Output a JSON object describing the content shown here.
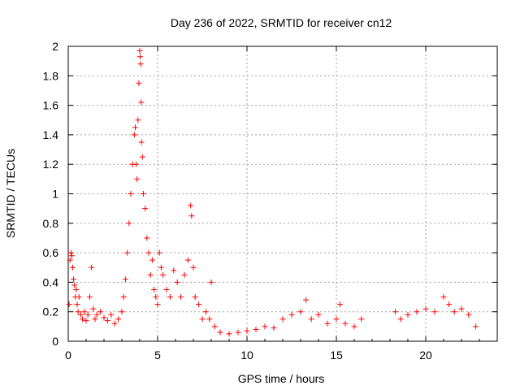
{
  "chart_data": {
    "type": "scatter",
    "title": "Day 236 of 2022, SRMTID for receiver cn12",
    "xlabel": "GPS time / hours",
    "ylabel": "SRMTID / TECUs",
    "xlim": [
      0,
      24
    ],
    "ylim": [
      0,
      2
    ],
    "x_ticks": [
      "0",
      "5",
      "10",
      "15",
      "20"
    ],
    "x_tick_values": [
      0,
      5,
      10,
      15,
      20
    ],
    "y_ticks": [
      "0",
      "0.2",
      "0.4",
      "0.6",
      "0.8",
      "1",
      "1.2",
      "1.4",
      "1.6",
      "1.8",
      "2"
    ],
    "y_tick_values": [
      0,
      0.2,
      0.4,
      0.6,
      0.8,
      1,
      1.2,
      1.4,
      1.6,
      1.8,
      2
    ],
    "grid": true,
    "marker": "+",
    "marker_color": "#ff0000",
    "series": [
      {
        "name": "SRMTID",
        "points": [
          [
            0.05,
            0.25
          ],
          [
            0.1,
            0.55
          ],
          [
            0.15,
            0.6
          ],
          [
            0.2,
            0.58
          ],
          [
            0.25,
            0.5
          ],
          [
            0.3,
            0.42
          ],
          [
            0.35,
            0.38
          ],
          [
            0.4,
            0.3
          ],
          [
            0.45,
            0.35
          ],
          [
            0.5,
            0.25
          ],
          [
            0.55,
            0.2
          ],
          [
            0.6,
            0.3
          ],
          [
            0.7,
            0.18
          ],
          [
            0.8,
            0.15
          ],
          [
            0.9,
            0.2
          ],
          [
            1.0,
            0.14
          ],
          [
            1.1,
            0.18
          ],
          [
            1.2,
            0.3
          ],
          [
            1.3,
            0.5
          ],
          [
            1.4,
            0.22
          ],
          [
            1.5,
            0.15
          ],
          [
            1.6,
            0.18
          ],
          [
            1.8,
            0.2
          ],
          [
            2.0,
            0.16
          ],
          [
            2.2,
            0.14
          ],
          [
            2.4,
            0.18
          ],
          [
            2.6,
            0.12
          ],
          [
            2.8,
            0.15
          ],
          [
            3.0,
            0.2
          ],
          [
            3.1,
            0.3
          ],
          [
            3.2,
            0.42
          ],
          [
            3.3,
            0.6
          ],
          [
            3.4,
            0.8
          ],
          [
            3.5,
            1.0
          ],
          [
            3.6,
            1.2
          ],
          [
            3.7,
            1.4
          ],
          [
            3.75,
            1.45
          ],
          [
            3.8,
            1.2
          ],
          [
            3.85,
            1.1
          ],
          [
            3.9,
            1.5
          ],
          [
            3.95,
            1.75
          ],
          [
            4.0,
            1.97
          ],
          [
            4.02,
            1.93
          ],
          [
            4.05,
            1.88
          ],
          [
            4.08,
            1.62
          ],
          [
            4.1,
            1.35
          ],
          [
            4.15,
            1.25
          ],
          [
            4.2,
            1.0
          ],
          [
            4.3,
            0.9
          ],
          [
            4.4,
            0.7
          ],
          [
            4.5,
            0.6
          ],
          [
            4.6,
            0.45
          ],
          [
            4.7,
            0.55
          ],
          [
            4.8,
            0.35
          ],
          [
            4.9,
            0.3
          ],
          [
            5.0,
            0.25
          ],
          [
            5.1,
            0.6
          ],
          [
            5.2,
            0.5
          ],
          [
            5.3,
            0.45
          ],
          [
            5.5,
            0.35
          ],
          [
            5.7,
            0.3
          ],
          [
            5.9,
            0.48
          ],
          [
            6.1,
            0.4
          ],
          [
            6.3,
            0.3
          ],
          [
            6.5,
            0.45
          ],
          [
            6.7,
            0.55
          ],
          [
            6.85,
            0.92
          ],
          [
            6.9,
            0.85
          ],
          [
            7.0,
            0.5
          ],
          [
            7.1,
            0.3
          ],
          [
            7.3,
            0.25
          ],
          [
            7.5,
            0.15
          ],
          [
            7.7,
            0.2
          ],
          [
            7.9,
            0.15
          ],
          [
            8.0,
            0.4
          ],
          [
            8.2,
            0.1
          ],
          [
            8.5,
            0.06
          ],
          [
            9.0,
            0.05
          ],
          [
            9.5,
            0.06
          ],
          [
            10.0,
            0.07
          ],
          [
            10.5,
            0.08
          ],
          [
            11.0,
            0.1
          ],
          [
            11.5,
            0.09
          ],
          [
            12.0,
            0.15
          ],
          [
            12.5,
            0.18
          ],
          [
            13.0,
            0.2
          ],
          [
            13.3,
            0.28
          ],
          [
            13.6,
            0.15
          ],
          [
            14.0,
            0.18
          ],
          [
            14.5,
            0.12
          ],
          [
            15.0,
            0.15
          ],
          [
            15.2,
            0.25
          ],
          [
            15.5,
            0.12
          ],
          [
            16.0,
            0.1
          ],
          [
            16.4,
            0.15
          ],
          [
            18.3,
            0.2
          ],
          [
            18.6,
            0.15
          ],
          [
            19.0,
            0.18
          ],
          [
            19.5,
            0.2
          ],
          [
            20.0,
            0.22
          ],
          [
            20.5,
            0.2
          ],
          [
            21.0,
            0.3
          ],
          [
            21.3,
            0.25
          ],
          [
            21.6,
            0.2
          ],
          [
            22.0,
            0.22
          ],
          [
            22.4,
            0.18
          ],
          [
            22.8,
            0.1
          ]
        ]
      }
    ]
  }
}
